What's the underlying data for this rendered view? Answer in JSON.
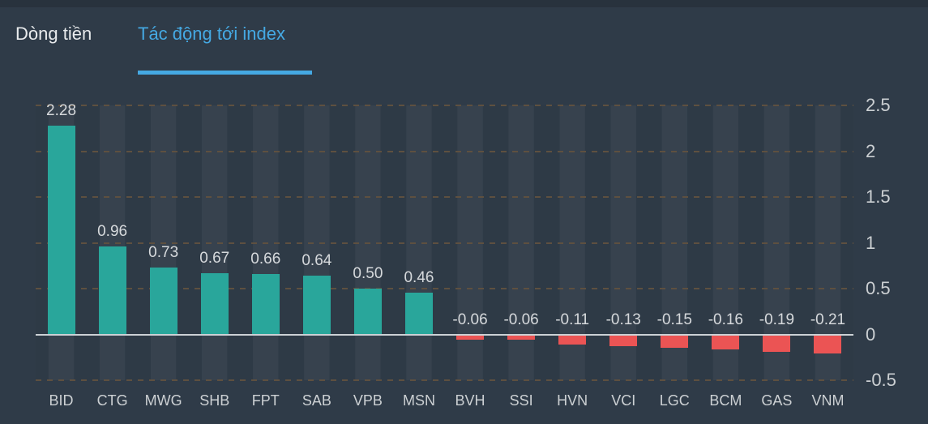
{
  "tabs": [
    {
      "label": "Dòng tiền",
      "active": false
    },
    {
      "label": "Tác động tới index",
      "active": true
    }
  ],
  "colors": {
    "positive_bar": "#29a69b",
    "negative_bar": "#eb5454",
    "active_tab": "#45a9e3",
    "gridline_dash": "#5e5040",
    "zero_line": "#ccd1d5",
    "band_light": "#37424e",
    "background": "#2f3b48"
  },
  "chart_data": {
    "type": "bar",
    "title": "Tác động tới index",
    "categories": [
      "BID",
      "CTG",
      "MWG",
      "SHB",
      "FPT",
      "SAB",
      "VPB",
      "MSN",
      "BVH",
      "SSI",
      "HVN",
      "VCI",
      "LGC",
      "BCM",
      "GAS",
      "VNM"
    ],
    "values": [
      2.28,
      0.96,
      0.73,
      0.67,
      0.66,
      0.64,
      0.5,
      0.46,
      -0.06,
      -0.06,
      -0.11,
      -0.13,
      -0.15,
      -0.16,
      -0.19,
      -0.21
    ],
    "value_labels": [
      "2.28",
      "0.96",
      "0.73",
      "0.67",
      "0.66",
      "0.64",
      "0.50",
      "0.46",
      "-0.06",
      "-0.06",
      "-0.11",
      "-0.13",
      "-0.15",
      "-0.16",
      "-0.19",
      "-0.21"
    ],
    "xlabel": "",
    "ylabel": "",
    "ylim": [
      -0.5,
      2.5
    ],
    "y_ticks": [
      {
        "label": "2.5",
        "value": 2.5
      },
      {
        "label": "2",
        "value": 2.0
      },
      {
        "label": "1.5",
        "value": 1.5
      },
      {
        "label": "1",
        "value": 1.0
      },
      {
        "label": "0.5",
        "value": 0.5
      },
      {
        "label": "0",
        "value": 0.0
      },
      {
        "label": "-0.5",
        "value": -0.5
      }
    ],
    "grid": "dashed horizontal lines, alternating vertical split-area bands",
    "legend_position": "none",
    "axis_position": "right"
  }
}
